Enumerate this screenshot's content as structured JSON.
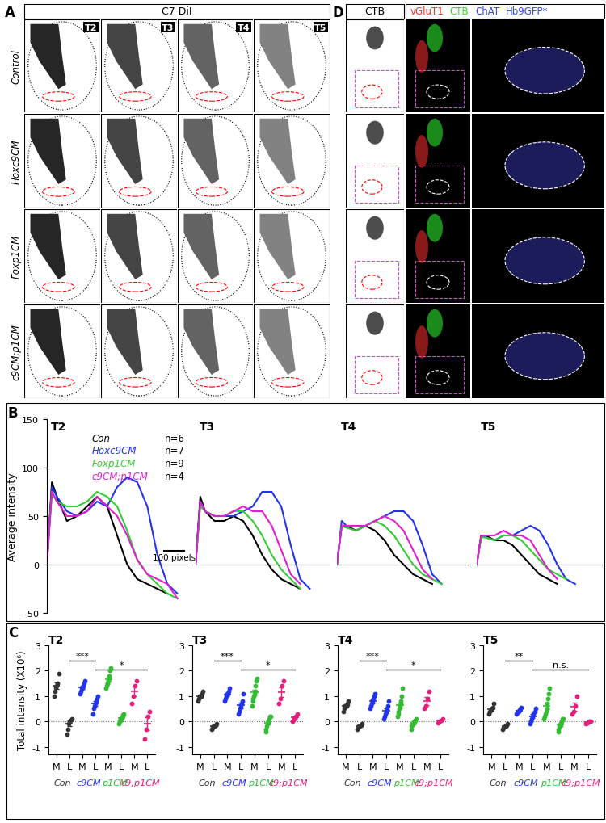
{
  "panel_A": {
    "label": "A",
    "header": "C7 DiI",
    "timepoints": [
      "T2",
      "T3",
      "T4",
      "T5"
    ],
    "rows": [
      "Control",
      "Hoxc9CM",
      "Foxp1CM",
      "c9CM;p1CM"
    ]
  },
  "panel_D": {
    "label": "D",
    "header": "CTB",
    "stains": [
      {
        "text": "vGluT1",
        "color": "#ff2a2a"
      },
      {
        "text": "CTB",
        "color": "#22dd22"
      },
      {
        "text": "ChAT",
        "color": "#3344ff"
      },
      {
        "text": "Hb9GFP*",
        "color": "#3344ff"
      }
    ]
  },
  "panel_B": {
    "label": "B"
  },
  "panel_C": {
    "label": "C"
  },
  "chart_data": [
    {
      "type": "line",
      "title": "T2",
      "ylabel": "Average intensity",
      "legend": "upper right",
      "tick_labels": "y",
      "x": [
        0,
        25,
        50,
        100,
        150,
        200,
        250,
        300,
        350,
        400,
        450,
        500,
        550,
        600,
        650
      ],
      "xlim": [
        0,
        700
      ],
      "ylim": [
        -50,
        150
      ],
      "yticks": [
        -50,
        0,
        50,
        100,
        150
      ],
      "scale_bar": {
        "length": 100,
        "label": "100 pixels"
      },
      "series": [
        {
          "name": "Con",
          "sample_size": "n=6",
          "color": "#000000",
          "values": [
            0,
            85,
            70,
            45,
            50,
            60,
            70,
            60,
            30,
            0,
            -15,
            -20,
            -25,
            -30,
            null
          ]
        },
        {
          "name": "Hoxc9CM",
          "sample_size": "n=7",
          "color": "#2233ee",
          "values": [
            0,
            80,
            70,
            55,
            50,
            55,
            65,
            60,
            80,
            90,
            85,
            60,
            10,
            -20,
            -30
          ]
        },
        {
          "name": "Foxp1CM",
          "sample_size": "n=9",
          "color": "#33cc33",
          "values": [
            0,
            75,
            65,
            60,
            60,
            65,
            75,
            70,
            60,
            35,
            5,
            -10,
            -20,
            -30,
            -35
          ]
        },
        {
          "name": "c9CM;p1CM",
          "sample_size": "n=4",
          "color": "#e020d0",
          "values": [
            0,
            75,
            65,
            50,
            50,
            55,
            70,
            60,
            50,
            30,
            5,
            -10,
            -15,
            -20,
            -35
          ]
        }
      ]
    },
    {
      "type": "line",
      "title": "T3",
      "tick_labels": false,
      "x": [
        0,
        25,
        50,
        100,
        150,
        200,
        250,
        300,
        350,
        400,
        450,
        500,
        550,
        600,
        650
      ],
      "xlim": [
        0,
        700
      ],
      "ylim": [
        -50,
        150
      ],
      "series": [
        {
          "color": "#000000",
          "values": [
            0,
            70,
            55,
            45,
            45,
            50,
            45,
            30,
            10,
            -5,
            -15,
            -20,
            -25,
            null,
            null
          ]
        },
        {
          "color": "#2233ee",
          "values": [
            0,
            65,
            55,
            50,
            50,
            50,
            55,
            60,
            75,
            75,
            60,
            20,
            -15,
            -25,
            null
          ]
        },
        {
          "color": "#33cc33",
          "values": [
            0,
            60,
            55,
            50,
            50,
            55,
            55,
            45,
            30,
            10,
            -5,
            -15,
            -25,
            null,
            null
          ]
        },
        {
          "color": "#e020d0",
          "values": [
            0,
            65,
            55,
            50,
            50,
            55,
            60,
            55,
            55,
            40,
            15,
            -10,
            -20,
            null,
            null
          ]
        }
      ]
    },
    {
      "type": "line",
      "title": "T4",
      "tick_labels": false,
      "x": [
        0,
        25,
        50,
        100,
        150,
        200,
        250,
        300,
        350,
        400,
        450,
        500,
        550,
        600,
        650
      ],
      "xlim": [
        0,
        700
      ],
      "ylim": [
        -50,
        150
      ],
      "series": [
        {
          "color": "#000000",
          "values": [
            0,
            40,
            40,
            35,
            40,
            35,
            25,
            10,
            0,
            -10,
            -15,
            -20,
            null,
            null,
            null
          ]
        },
        {
          "color": "#2233ee",
          "values": [
            0,
            45,
            40,
            40,
            40,
            45,
            50,
            55,
            55,
            45,
            20,
            -10,
            -20,
            null,
            null
          ]
        },
        {
          "color": "#33cc33",
          "values": [
            0,
            40,
            38,
            35,
            40,
            45,
            40,
            30,
            15,
            0,
            -10,
            -15,
            -20,
            null,
            null
          ]
        },
        {
          "color": "#e020d0",
          "values": [
            0,
            40,
            40,
            40,
            40,
            45,
            50,
            45,
            35,
            15,
            -5,
            -15,
            null,
            null,
            null
          ]
        }
      ]
    },
    {
      "type": "line",
      "title": "T5",
      "tick_labels": false,
      "x": [
        0,
        25,
        50,
        100,
        150,
        200,
        250,
        300,
        350,
        400,
        450,
        500,
        550,
        600,
        650
      ],
      "xlim": [
        0,
        700
      ],
      "ylim": [
        -50,
        150
      ],
      "series": [
        {
          "color": "#000000",
          "values": [
            0,
            30,
            30,
            25,
            25,
            20,
            10,
            0,
            -10,
            -15,
            -20,
            null,
            null,
            null,
            null
          ]
        },
        {
          "color": "#2233ee",
          "values": [
            0,
            30,
            28,
            25,
            30,
            30,
            35,
            40,
            35,
            20,
            0,
            -15,
            -20,
            null,
            null
          ]
        },
        {
          "color": "#33cc33",
          "values": [
            0,
            28,
            28,
            25,
            30,
            30,
            25,
            15,
            5,
            -5,
            -10,
            -15,
            null,
            null,
            null
          ]
        },
        {
          "color": "#e020d0",
          "values": [
            0,
            30,
            30,
            30,
            35,
            30,
            30,
            25,
            10,
            -5,
            -15,
            null,
            null,
            null,
            null
          ]
        }
      ]
    },
    {
      "type": "strip",
      "title": "T2",
      "ylabel": "Total intensity (X10⁶)",
      "categories": [
        "M",
        "L",
        "M",
        "L",
        "M",
        "L",
        "M",
        "L"
      ],
      "groups": [
        {
          "name": "Con",
          "color": "#333333"
        },
        {
          "name": "c9CM",
          "color": "#2233ee"
        },
        {
          "name": "p1CM",
          "color": "#33bb33"
        },
        {
          "name": "c9;p1CM",
          "color": "#e0207a"
        }
      ],
      "ylim": [
        -1.3,
        3
      ],
      "yticks": [
        -1,
        0,
        1,
        2,
        3
      ],
      "points": [
        [
          1.0,
          1.2,
          1.35,
          1.4,
          1.5,
          1.9
        ],
        [
          -0.5,
          -0.3,
          -0.1,
          0.0,
          0.05,
          0.1
        ],
        [
          1.1,
          1.2,
          1.3,
          1.3,
          1.4,
          1.5,
          1.6
        ],
        [
          0.3,
          0.5,
          0.6,
          0.7,
          0.8,
          0.9,
          1.0
        ],
        [
          1.3,
          1.4,
          1.5,
          1.5,
          1.6,
          1.7,
          1.8,
          2.0,
          2.1
        ],
        [
          -0.1,
          0.0,
          0.05,
          0.1,
          0.1,
          0.15,
          0.2,
          0.25,
          0.3
        ],
        [
          0.7,
          1.0,
          1.4,
          1.6
        ],
        [
          -0.7,
          -0.3,
          0.2,
          0.4
        ]
      ],
      "means": [
        1.4,
        -0.1,
        1.35,
        0.7,
        1.65,
        0.12,
        1.18,
        -0.1
      ],
      "errors": [
        0.13,
        0.1,
        0.07,
        0.09,
        0.09,
        0.04,
        0.2,
        0.25
      ],
      "annotations": [
        {
          "text": "***",
          "from": 1,
          "to": 3
        },
        {
          "text": "*",
          "from": 3,
          "to": 7
        }
      ]
    },
    {
      "type": "strip",
      "title": "T3",
      "categories": [
        "M",
        "L",
        "M",
        "L",
        "M",
        "L",
        "M",
        "L"
      ],
      "groups": [
        {
          "name": "Con",
          "color": "#333333"
        },
        {
          "name": "c9CM",
          "color": "#2233ee"
        },
        {
          "name": "p1CM",
          "color": "#33bb33"
        },
        {
          "name": "c9;p1CM",
          "color": "#e0207a"
        }
      ],
      "ylim": [
        -1.3,
        3
      ],
      "yticks": [
        -1,
        0,
        1,
        2,
        3
      ],
      "points": [
        [
          0.8,
          0.9,
          1.0,
          1.0,
          1.1,
          1.2
        ],
        [
          -0.3,
          -0.25,
          -0.2,
          -0.2,
          -0.15,
          -0.1
        ],
        [
          0.8,
          0.9,
          1.0,
          1.1,
          1.1,
          1.2,
          1.3
        ],
        [
          0.3,
          0.4,
          0.5,
          0.6,
          0.7,
          0.8,
          1.1
        ],
        [
          0.6,
          0.8,
          0.9,
          1.0,
          1.1,
          1.2,
          1.4,
          1.6,
          1.7
        ],
        [
          -0.4,
          -0.3,
          -0.2,
          -0.1,
          0.0,
          0.0,
          0.1,
          0.2,
          0.2
        ],
        [
          0.7,
          0.9,
          1.4,
          1.6
        ],
        [
          0.0,
          0.1,
          0.2,
          0.3
        ]
      ],
      "means": [
        1.0,
        -0.2,
        1.06,
        0.63,
        1.14,
        -0.06,
        1.15,
        0.15
      ],
      "errors": [
        0.06,
        0.03,
        0.06,
        0.1,
        0.12,
        0.07,
        0.2,
        0.06
      ],
      "annotations": [
        {
          "text": "***",
          "from": 1,
          "to": 3
        },
        {
          "text": "*",
          "from": 3,
          "to": 7
        }
      ]
    },
    {
      "type": "strip",
      "title": "T4",
      "categories": [
        "M",
        "L",
        "M",
        "L",
        "M",
        "L",
        "M",
        "L"
      ],
      "groups": [
        {
          "name": "Con",
          "color": "#333333"
        },
        {
          "name": "c9CM",
          "color": "#2233ee"
        },
        {
          "name": "p1CM",
          "color": "#33bb33"
        },
        {
          "name": "c9;p1CM",
          "color": "#e0207a"
        }
      ],
      "ylim": [
        -1.3,
        3
      ],
      "yticks": [
        -1,
        0,
        1,
        2,
        3
      ],
      "points": [
        [
          0.4,
          0.5,
          0.6,
          0.6,
          0.7,
          0.8
        ],
        [
          -0.3,
          -0.25,
          -0.2,
          -0.2,
          -0.15,
          -0.1
        ],
        [
          0.5,
          0.6,
          0.7,
          0.8,
          0.9,
          1.0,
          1.1
        ],
        [
          0.1,
          0.2,
          0.3,
          0.4,
          0.5,
          0.6,
          0.8
        ],
        [
          0.2,
          0.3,
          0.4,
          0.5,
          0.6,
          0.7,
          0.8,
          1.0,
          1.3
        ],
        [
          -0.3,
          -0.2,
          -0.15,
          -0.1,
          -0.05,
          0.0,
          0.0,
          0.05,
          0.1
        ],
        [
          0.5,
          0.6,
          0.9,
          1.2
        ],
        [
          -0.05,
          0.0,
          0.05,
          0.1
        ]
      ],
      "means": [
        0.6,
        -0.2,
        0.8,
        0.41,
        0.64,
        -0.07,
        0.8,
        0.03
      ],
      "errors": [
        0.06,
        0.03,
        0.08,
        0.09,
        0.11,
        0.04,
        0.16,
        0.03
      ],
      "annotations": [
        {
          "text": "***",
          "from": 1,
          "to": 3
        },
        {
          "text": "*",
          "from": 3,
          "to": 7
        }
      ]
    },
    {
      "type": "strip",
      "title": "T5",
      "categories": [
        "M",
        "L",
        "M",
        "L",
        "M",
        "L",
        "M",
        "L"
      ],
      "groups": [
        {
          "name": "Con",
          "color": "#333333"
        },
        {
          "name": "c9CM",
          "color": "#2233ee"
        },
        {
          "name": "p1CM",
          "color": "#33bb33"
        },
        {
          "name": "c9;p1CM",
          "color": "#e0207a"
        }
      ],
      "ylim": [
        -1.3,
        3
      ],
      "yticks": [
        -1,
        0,
        1,
        2,
        3
      ],
      "points": [
        [
          0.3,
          0.4,
          0.45,
          0.5,
          0.55,
          0.7
        ],
        [
          -0.3,
          -0.25,
          -0.2,
          -0.2,
          -0.15,
          -0.1
        ],
        [
          0.3,
          0.35,
          0.4,
          0.4,
          0.45,
          0.5,
          0.55
        ],
        [
          -0.1,
          0.0,
          0.1,
          0.2,
          0.3,
          0.4,
          0.5
        ],
        [
          0.1,
          0.2,
          0.3,
          0.4,
          0.5,
          0.7,
          0.9,
          1.1,
          1.3
        ],
        [
          -0.4,
          -0.3,
          -0.2,
          -0.2,
          -0.1,
          -0.1,
          0.0,
          0.1,
          0.1
        ],
        [
          0.3,
          0.4,
          0.6,
          1.0
        ],
        [
          -0.1,
          -0.05,
          0.0,
          0.0
        ]
      ],
      "means": [
        0.48,
        -0.2,
        0.42,
        0.2,
        0.61,
        -0.12,
        0.58,
        -0.04
      ],
      "errors": [
        0.06,
        0.03,
        0.03,
        0.08,
        0.13,
        0.06,
        0.15,
        0.02
      ],
      "annotations": [
        {
          "text": "**",
          "from": 1,
          "to": 3
        },
        {
          "text": "n.s.",
          "from": 3,
          "to": 7
        }
      ]
    }
  ]
}
